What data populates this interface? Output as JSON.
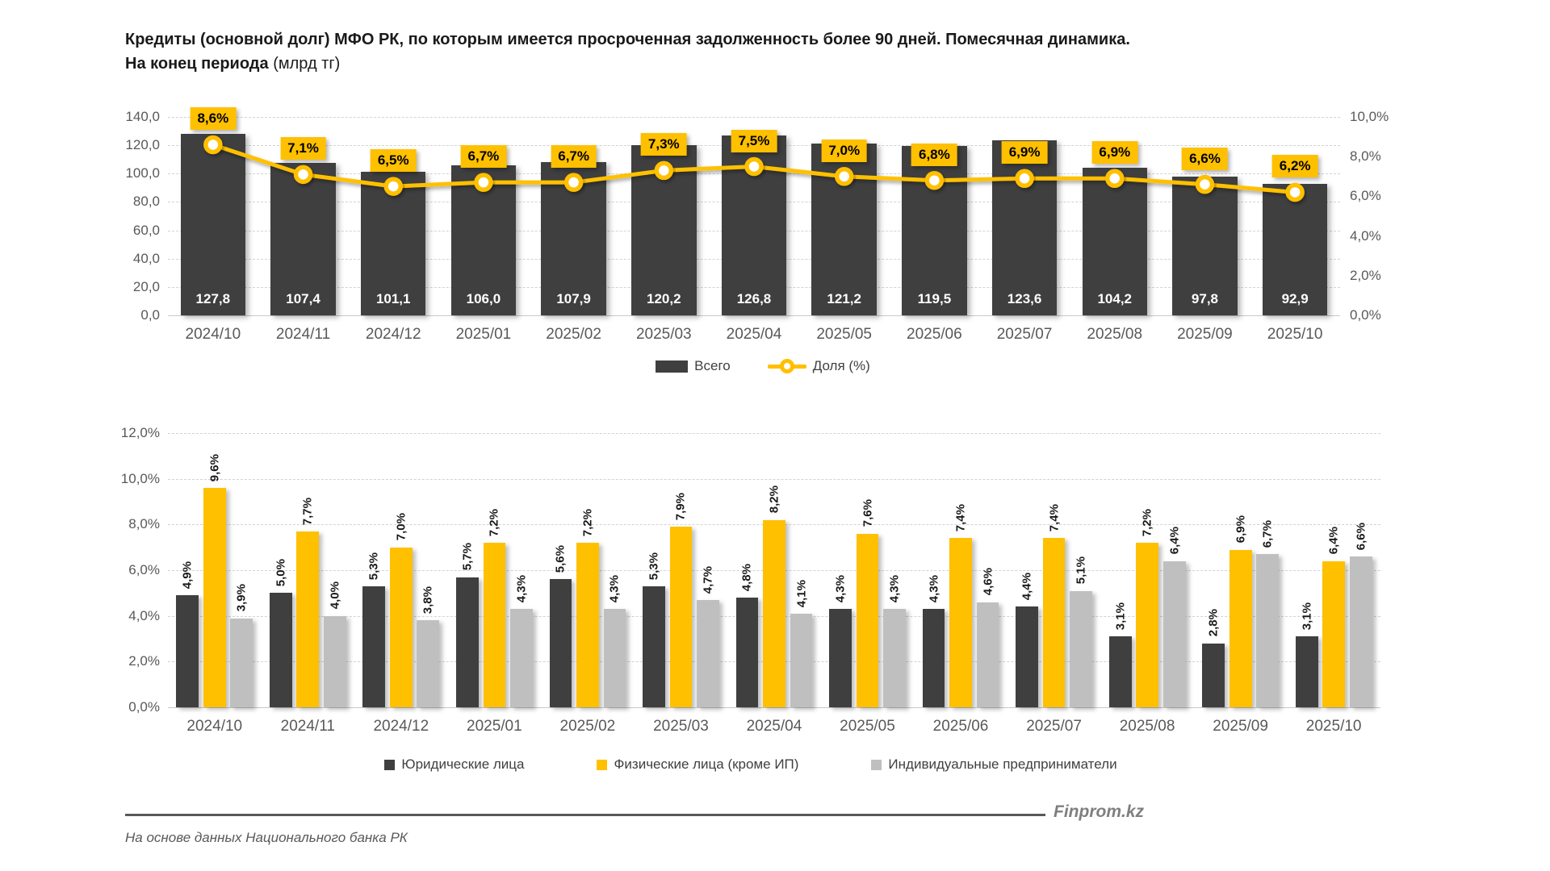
{
  "title": {
    "line1": "Кредиты (основной долг) МФО РК, по которым имеется просроченная задолженность более 90 дней. Помесячная динамика.",
    "line2_bold": "На конец периода",
    "line2_normal": "(млрд тг)"
  },
  "colors": {
    "dark": "#3F3F3F",
    "yellow": "#FFC000",
    "gray": "#BFBFBF",
    "axis_text": "#595959",
    "grid": "#D3D3D3"
  },
  "chart_data": [
    {
      "type": "bar",
      "subtype": "bars-with-line-dual-axis",
      "categories": [
        "2024/10",
        "2024/11",
        "2024/12",
        "2025/01",
        "2025/02",
        "2025/03",
        "2025/04",
        "2025/05",
        "2025/06",
        "2025/07",
        "2025/08",
        "2025/09",
        "2025/10"
      ],
      "series": [
        {
          "name": "Всего",
          "type": "bar",
          "axis": "left",
          "color": "#3F3F3F",
          "values": [
            127.8,
            107.4,
            101.1,
            106.0,
            107.9,
            120.2,
            126.8,
            121.2,
            119.5,
            123.6,
            104.2,
            97.8,
            92.9
          ],
          "labels": [
            "127,8",
            "107,4",
            "101,1",
            "106,0",
            "107,9",
            "120,2",
            "126,8",
            "121,2",
            "119,5",
            "123,6",
            "104,2",
            "97,8",
            "92,9"
          ]
        },
        {
          "name": "Доля (%)",
          "type": "line",
          "axis": "right",
          "color": "#FFC000",
          "values": [
            8.6,
            7.1,
            6.5,
            6.7,
            6.7,
            7.3,
            7.5,
            7.0,
            6.8,
            6.9,
            6.9,
            6.6,
            6.2
          ],
          "labels": [
            "8,6%",
            "7,1%",
            "6,5%",
            "6,7%",
            "6,7%",
            "7,3%",
            "7,5%",
            "7,0%",
            "6,8%",
            "6,9%",
            "6,9%",
            "6,6%",
            "6,2%"
          ]
        }
      ],
      "left_axis": {
        "min": 0,
        "max": 140,
        "step": 20,
        "ticks": [
          "0,0",
          "20,0",
          "40,0",
          "60,0",
          "80,0",
          "100,0",
          "120,0",
          "140,0"
        ]
      },
      "right_axis": {
        "min": 0,
        "max": 10,
        "step": 2,
        "ticks": [
          "0,0%",
          "2,0%",
          "4,0%",
          "6,0%",
          "8,0%",
          "10,0%"
        ]
      },
      "grid": "horizontal-dashed",
      "legend_position": "bottom"
    },
    {
      "type": "bar",
      "subtype": "grouped-bars",
      "categories": [
        "2024/10",
        "2024/11",
        "2024/12",
        "2025/01",
        "2025/02",
        "2025/03",
        "2025/04",
        "2025/05",
        "2025/06",
        "2025/07",
        "2025/08",
        "2025/09",
        "2025/10"
      ],
      "series": [
        {
          "name": "Юридические лица",
          "color": "#3F3F3F",
          "values": [
            4.9,
            5.0,
            5.3,
            5.7,
            5.6,
            5.3,
            4.8,
            4.3,
            4.3,
            4.4,
            3.1,
            2.8,
            3.1
          ],
          "labels": [
            "4,9%",
            "5,0%",
            "5,3%",
            "5,7%",
            "5,6%",
            "5,3%",
            "4,8%",
            "4,3%",
            "4,3%",
            "4,4%",
            "3,1%",
            "2,8%",
            "3,1%"
          ]
        },
        {
          "name": "Физические лица (кроме ИП)",
          "color": "#FFC000",
          "values": [
            9.6,
            7.7,
            7.0,
            7.2,
            7.2,
            7.9,
            8.2,
            7.6,
            7.4,
            7.4,
            7.2,
            6.9,
            6.4
          ],
          "labels": [
            "9,6%",
            "7,7%",
            "7,0%",
            "7,2%",
            "7,2%",
            "7,9%",
            "8,2%",
            "7,6%",
            "7,4%",
            "7,4%",
            "7,2%",
            "6,9%",
            "6,4%"
          ]
        },
        {
          "name": "Индивидуальные предприниматели",
          "color": "#BFBFBF",
          "values": [
            3.9,
            4.0,
            3.8,
            4.3,
            4.3,
            4.7,
            4.1,
            4.3,
            4.6,
            5.1,
            6.4,
            6.7,
            6.6
          ],
          "labels": [
            "3,9%",
            "4,0%",
            "3,8%",
            "4,3%",
            "4,3%",
            "4,7%",
            "4,1%",
            "4,3%",
            "4,6%",
            "5,1%",
            "6,4%",
            "6,7%",
            "6,6%"
          ]
        }
      ],
      "left_axis": {
        "min": 0,
        "max": 12,
        "step": 2,
        "ticks": [
          "0,0%",
          "2,0%",
          "4,0%",
          "6,0%",
          "8,0%",
          "10,0%",
          "12,0%"
        ]
      },
      "grid": "horizontal-dashed",
      "legend_position": "bottom"
    }
  ],
  "footer": {
    "source": "На основе данных Национального банка РК",
    "brand": "Finprom.kz"
  }
}
